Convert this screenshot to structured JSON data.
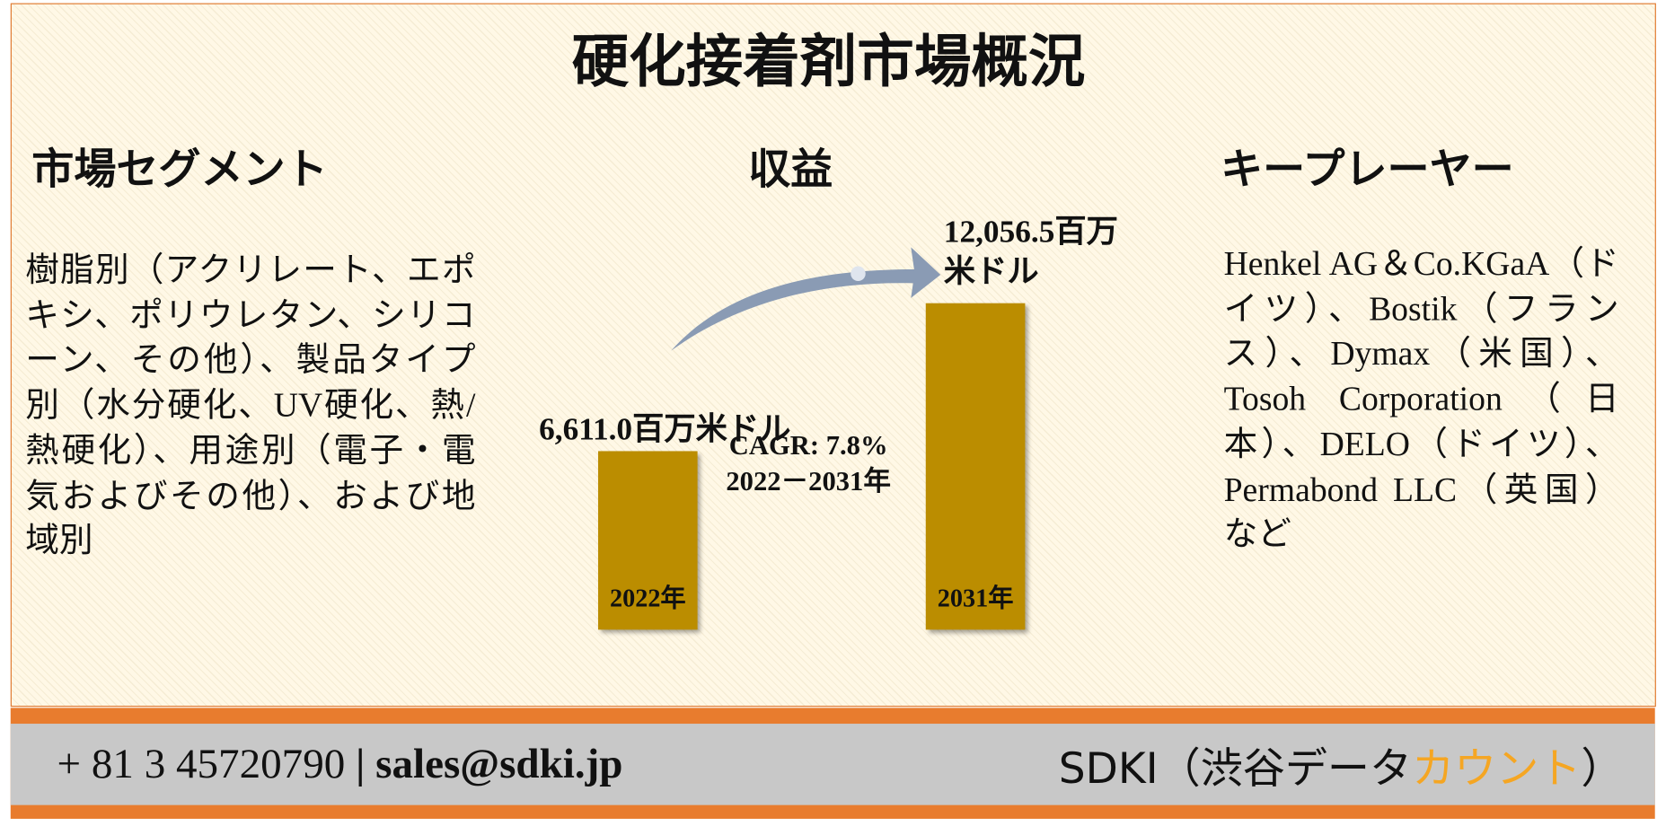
{
  "header": {
    "title": "硬化接着剤市場概況"
  },
  "segments": {
    "heading": "市場セグメント",
    "text": "樹脂別（アクリレート、エポキシ、ポリウレタン、シリコーン、その他）、製品タイプ別（水分硬化、UV硬化、熱/熱硬化）、用途別（電子・電気およびその他）、および地域別"
  },
  "revenue": {
    "heading": "収益",
    "cagr": "CAGR: 7.8%",
    "period": "2022－2031年"
  },
  "chart_data": {
    "type": "bar",
    "categories": [
      "2022年",
      "2031年"
    ],
    "values": [
      6611.0,
      12056.5
    ],
    "value_labels": [
      "6,611.0百万米ドル",
      "12,056.5百万米ドル"
    ],
    "color": "#bb8d00"
  },
  "players": {
    "heading": "キープレーヤー",
    "text": "Henkel AG＆Co.KGaA（ドイツ）、Bostik（フランス）、Dymax（米国）、Tosoh Corporation（日本）、DELO（ドイツ）、Permabond LLC（英国）など"
  },
  "footer": {
    "phone": "+ 81 3 45720790",
    "separator": "|",
    "email": "sales@sdki.jp",
    "brand": "SDKI（渋谷データ",
    "brand_highlight": "カウント",
    "brand_end": "）"
  }
}
